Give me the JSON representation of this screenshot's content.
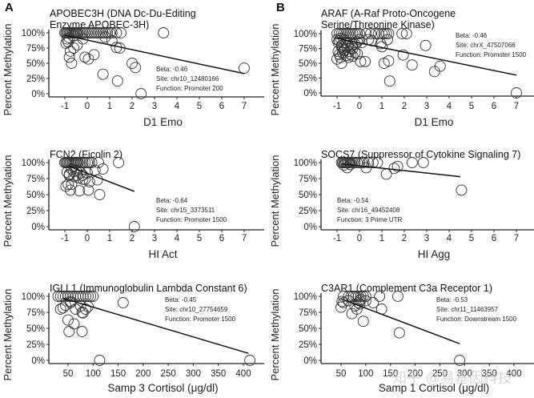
{
  "figure": {
    "watermark": "知乎 @易基因科技"
  },
  "chart_data": [
    {
      "panel": "A",
      "type": "scatter",
      "title": "APOBEC3H (DNA Dc-Du-Editing Enzyme APOBEC-3H)",
      "title_lines": [
        "APOBEC3H (DNA Dc-Du-Editing",
        "Enzyme APOBEC-3H)"
      ],
      "xlabel": "D1 Emo",
      "ylabel": "Percent Methylation",
      "xlim": [
        -1.5,
        7.7
      ],
      "ylim": [
        0,
        100
      ],
      "xticks": [
        -1,
        0,
        1,
        2,
        3,
        4,
        5,
        6,
        7
      ],
      "xtick_labels": [
        "-1",
        "0",
        "1",
        "2",
        "3",
        "4",
        "5",
        "6",
        "7"
      ],
      "yticks": [
        0,
        25,
        50,
        75,
        100
      ],
      "ytick_labels": [
        "0%",
        "25%",
        "50%",
        "75%",
        "100%"
      ],
      "annotation": [
        "Beta: -0.46",
        "Site: chr10_12480166",
        "Function: Promoter 200"
      ],
      "annotation_position": "bottom-right",
      "fit_line": {
        "x": [
          -1,
          7
        ],
        "y": [
          96,
          33
        ]
      },
      "points": {
        "x": [
          -1,
          -0.95,
          -0.9,
          -0.85,
          -0.8,
          -0.75,
          -0.7,
          -0.65,
          -0.6,
          -0.55,
          -0.5,
          -0.45,
          -0.4,
          -0.3,
          -0.2,
          -0.1,
          0,
          0.1,
          0.2,
          0.3,
          0.4,
          0.5,
          0.6,
          0.7,
          0.8,
          0.9,
          1.0,
          1.1,
          1.3,
          1.5,
          3.4,
          -0.95,
          -0.9,
          -0.8,
          -0.6,
          -0.45,
          -0.2,
          0.8,
          1.1,
          1.3,
          1.45,
          -0.8,
          -0.7,
          -0.6,
          -0.1,
          0.05,
          0.3,
          2.0,
          2.15,
          0.7,
          1.35,
          2.4,
          7.0,
          -0.85,
          -0.75
        ],
        "y": [
          100,
          100,
          100,
          100,
          100,
          100,
          100,
          100,
          100,
          100,
          100,
          100,
          100,
          100,
          100,
          100,
          100,
          100,
          100,
          100,
          100,
          100,
          100,
          100,
          100,
          100,
          100,
          100,
          100,
          100,
          100,
          83,
          90,
          92,
          75,
          80,
          90,
          93,
          87,
          76,
          75,
          60,
          50,
          95,
          60,
          57,
          64,
          50,
          43,
          32,
          21,
          0,
          42,
          85,
          70
        ]
      }
    },
    {
      "panel": "B",
      "type": "scatter",
      "title": "ARAF (A-Raf Proto-Oncogene Serine/Threonine Kinase)",
      "title_lines": [
        "ARAF (A-Raf Proto-Oncogene",
        "Serine/Threonine Kinase)"
      ],
      "xlabel": "D1 Emo",
      "ylabel": "Percent Methylation",
      "xlim": [
        -1.5,
        7.7
      ],
      "ylim": [
        0,
        100
      ],
      "xticks": [
        -1,
        0,
        1,
        2,
        3,
        4,
        5,
        6,
        7
      ],
      "xtick_labels": [
        "-1",
        "0",
        "1",
        "2",
        "3",
        "4",
        "5",
        "6",
        "7"
      ],
      "yticks": [
        0,
        25,
        50,
        75,
        100
      ],
      "ytick_labels": [
        "0%",
        "25%",
        "50%",
        "75%",
        "100%"
      ],
      "annotation": [
        "Beta: -0.46",
        "Site: chrX_47507066",
        "Function: Promoter 1500"
      ],
      "annotation_position": "top-right",
      "fit_line": {
        "x": [
          -1,
          7
        ],
        "y": [
          92,
          30
        ]
      },
      "points": {
        "x": [
          -1,
          -0.9,
          -0.8,
          -0.7,
          -0.6,
          -0.5,
          -0.4,
          -0.3,
          -0.2,
          -0.1,
          0,
          0.3,
          0.5,
          0.7,
          0.85,
          1.0,
          1.1,
          1.2,
          1.3,
          1.9,
          2.1,
          -1,
          -0.95,
          -0.9,
          -0.85,
          -0.8,
          -0.75,
          -0.7,
          -0.65,
          -0.6,
          -0.55,
          -0.5,
          -0.45,
          -0.4,
          -0.3,
          -0.2,
          -0.1,
          0,
          -0.95,
          -0.9,
          -0.85,
          -0.8,
          -0.75,
          -0.7,
          -0.6,
          -0.5,
          -0.4,
          -0.3,
          -0.2,
          0.1,
          0.4,
          0.55,
          0.95,
          1.0,
          1.25,
          -1,
          -0.8,
          -0.3,
          0.05,
          -0.1,
          0.25,
          1.1,
          1.3,
          1.95,
          2.35,
          2.95,
          3.35,
          3.6,
          1.35,
          7.0
        ],
        "y": [
          100,
          100,
          100,
          100,
          100,
          100,
          100,
          100,
          100,
          100,
          100,
          100,
          100,
          100,
          100,
          100,
          100,
          100,
          100,
          100,
          100,
          90,
          85,
          88,
          92,
          80,
          75,
          90,
          72,
          85,
          78,
          80,
          70,
          75,
          82,
          68,
          86,
          90,
          70,
          65,
          60,
          78,
          68,
          72,
          63,
          60,
          65,
          75,
          82,
          85,
          90,
          88,
          83,
          78,
          90,
          57,
          50,
          62,
          53,
          66,
          53,
          50,
          54,
          64,
          47,
          80,
          36,
          45,
          20,
          0
        ]
      }
    },
    {
      "panel": "A",
      "type": "scatter",
      "title": "FCN2 (Ficolin 2)",
      "title_lines": [
        "FCN2 (Ficolin 2)"
      ],
      "xlabel": "HI Act",
      "ylabel": "Percent Methylation",
      "xlim": [
        -1.5,
        7.7
      ],
      "ylim": [
        0,
        100
      ],
      "xticks": [
        -1,
        0,
        1,
        2,
        3,
        4,
        5,
        6,
        7
      ],
      "xtick_labels": [
        "-1",
        "0",
        "1",
        "2",
        "3",
        "4",
        "5",
        "6",
        "7"
      ],
      "yticks": [
        0,
        25,
        50,
        75,
        100
      ],
      "ytick_labels": [
        "0%",
        "25%",
        "50%",
        "75%",
        "100%"
      ],
      "annotation": [
        "Beta: -0.64",
        "Site: chr15_3373511",
        "Function: Promoter 1500"
      ],
      "annotation_position": "bottom-right",
      "fit_line": {
        "x": [
          -0.8,
          2.1
        ],
        "y": [
          94,
          55
        ]
      },
      "points": {
        "x": [
          -1,
          -0.95,
          -0.9,
          -0.85,
          -0.8,
          -0.75,
          -0.7,
          -0.65,
          -0.6,
          -0.55,
          -0.5,
          -0.45,
          -0.4,
          -0.3,
          -0.2,
          -0.1,
          0,
          0.1,
          0.2,
          0.5,
          1.4,
          -0.9,
          -0.8,
          -0.7,
          -0.6,
          -0.5,
          -0.4,
          -0.3,
          -0.2,
          -0.1,
          0,
          0.1,
          0.35,
          0.45,
          0.7,
          -0.8,
          -0.7,
          -0.6,
          -0.45,
          -0.2,
          -0.95,
          -0.85,
          -0.75,
          -0.35,
          0.05,
          0.55,
          2.1
        ],
        "y": [
          100,
          100,
          100,
          100,
          100,
          100,
          100,
          100,
          100,
          100,
          100,
          100,
          100,
          100,
          100,
          100,
          100,
          100,
          100,
          100,
          100,
          85,
          82,
          90,
          78,
          88,
          76,
          84,
          80,
          74,
          84,
          70,
          88,
          73,
          90,
          80,
          66,
          86,
          80,
          74,
          63,
          66,
          57,
          56,
          57,
          50,
          0
        ]
      }
    },
    {
      "panel": "B",
      "type": "scatter",
      "title": "SOCS7 (Suppressor of Cytokine Signaling 7)",
      "title_lines": [
        "SOCS7 (Suppressor of Cytokine Signaling 7)"
      ],
      "xlabel": "HI Agg",
      "ylabel": "Percent Methylation",
      "xlim": [
        -1.5,
        7.7
      ],
      "ylim": [
        0,
        100
      ],
      "xticks": [
        -1,
        0,
        1,
        2,
        3,
        4,
        5,
        6,
        7
      ],
      "xtick_labels": [
        "-1",
        "0",
        "1",
        "2",
        "3",
        "4",
        "5",
        "6",
        "7"
      ],
      "yticks": [
        0,
        25,
        50,
        75,
        100
      ],
      "ytick_labels": [
        "0%",
        "25%",
        "50%",
        "75%",
        "100%"
      ],
      "annotation": [
        "Beta: -0.54",
        "Site: chr16_49452408",
        "Function: 3 Prime UTR"
      ],
      "annotation_position": "bottom-left",
      "fit_line": {
        "x": [
          -0.8,
          4.5
        ],
        "y": [
          98,
          78
        ]
      },
      "points": {
        "x": [
          -0.8,
          -0.75,
          -0.7,
          -0.65,
          -0.6,
          -0.55,
          -0.5,
          -0.45,
          -0.4,
          -0.3,
          -0.2,
          -0.1,
          0,
          0.1,
          0.2,
          0.4,
          0.6,
          0.8,
          2.35,
          2.85,
          -0.7,
          -0.55,
          -0.4,
          0.3,
          1.2,
          1.55,
          1.7,
          4.55
        ],
        "y": [
          100,
          100,
          100,
          100,
          100,
          100,
          100,
          100,
          100,
          100,
          100,
          100,
          100,
          100,
          100,
          100,
          100,
          100,
          100,
          100,
          96,
          92,
          97,
          92,
          82,
          91,
          94,
          57
        ]
      }
    },
    {
      "panel": "A",
      "type": "scatter",
      "title": "IGLL1 (Immunoglobulin Lambda Constant 6)",
      "title_lines": [
        "IGLL1 (Immunoglobulin Lambda Constant 6)"
      ],
      "xlabel": "Samp 3 Cortisol (μg/dl)",
      "ylabel": "Percent Methylation",
      "xlim": [
        20,
        440
      ],
      "ylim": [
        0,
        100
      ],
      "xticks": [
        50,
        100,
        150,
        200,
        250,
        300,
        350,
        400
      ],
      "xtick_labels": [
        "50",
        "100",
        "150",
        "200",
        "250",
        "300",
        "350",
        "400"
      ],
      "yticks": [
        0,
        25,
        50,
        75,
        100
      ],
      "ytick_labels": [
        "0%",
        "25%",
        "50%",
        "75%",
        "100%"
      ],
      "annotation": [
        "Beta: -0.45",
        "Site: chr10_27754659",
        "Function: Promoter 1500"
      ],
      "annotation_position": "top-right",
      "fit_line": {
        "x": [
          40,
          410
        ],
        "y": [
          97,
          11
        ]
      },
      "points": {
        "x": [
          30,
          35,
          40,
          45,
          50,
          55,
          60,
          65,
          70,
          75,
          80,
          85,
          90,
          95,
          100,
          35,
          40,
          45,
          55,
          65,
          75,
          80,
          85,
          90,
          55,
          160,
          50,
          62,
          52,
          78,
          78,
          113,
          413
        ],
        "y": [
          100,
          100,
          100,
          100,
          100,
          100,
          100,
          100,
          100,
          100,
          100,
          100,
          100,
          100,
          100,
          80,
          82,
          86,
          90,
          80,
          85,
          74,
          80,
          84,
          92,
          90,
          63,
          57,
          45,
          75,
          45,
          0,
          0
        ]
      }
    },
    {
      "panel": "B",
      "type": "scatter",
      "title": "C3AR1 (Complement C3a Receptor 1)",
      "title_lines": [
        "C3AR1 (Complement C3a Receptor 1)"
      ],
      "xlabel": "Samp 1 Cortisol (μg/dl)",
      "ylabel": "Percent Methylation",
      "xlim": [
        10,
        450
      ],
      "ylim": [
        0,
        100
      ],
      "xticks": [
        50,
        100,
        150,
        200,
        250,
        300,
        350,
        400
      ],
      "xtick_labels": [
        "50",
        "100",
        "150",
        "200",
        "250",
        "300",
        "350",
        "400"
      ],
      "yticks": [
        0,
        25,
        50,
        75,
        100
      ],
      "ytick_labels": [
        "0%",
        "25%",
        "50%",
        "75%",
        "100%"
      ],
      "annotation": [
        "Beta: -0.53",
        "Site: chr11_11463957",
        "Function: Downstream 1500"
      ],
      "annotation_position": "top-right",
      "fit_line": {
        "x": [
          50,
          290
        ],
        "y": [
          96,
          26
        ]
      },
      "points": {
        "x": [
          55,
          65,
          70,
          75,
          80,
          85,
          90,
          95,
          100,
          128,
          165,
          52,
          55,
          65,
          78,
          85,
          88,
          90,
          100,
          115,
          50,
          72,
          82,
          88,
          95,
          132,
          168,
          290
        ],
        "y": [
          100,
          100,
          100,
          100,
          100,
          100,
          100,
          100,
          100,
          100,
          100,
          92,
          90,
          93,
          85,
          90,
          88,
          95,
          93,
          90,
          83,
          73,
          80,
          93,
          61,
          80,
          43,
          0
        ]
      }
    }
  ]
}
